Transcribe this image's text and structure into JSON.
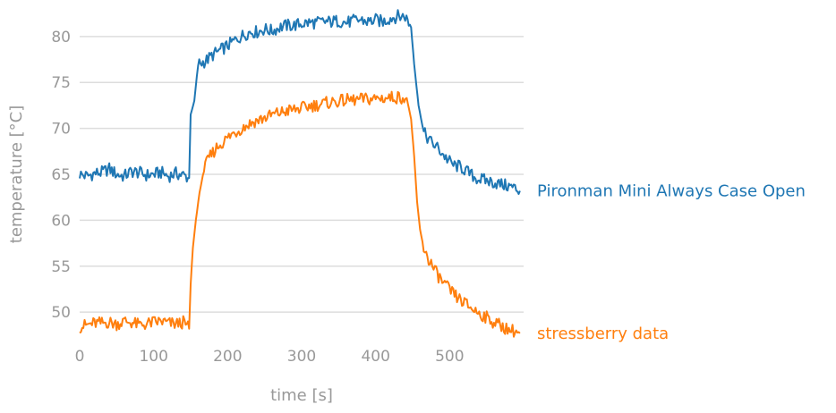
{
  "chart_data": {
    "type": "line",
    "title": "",
    "xlabel": "time [s]",
    "ylabel": "temperature [°C]",
    "xlim": [
      0,
      600
    ],
    "ylim": [
      47,
      83
    ],
    "xticks": [
      0,
      100,
      200,
      300,
      400,
      500
    ],
    "yticks": [
      50,
      55,
      60,
      65,
      70,
      75,
      80
    ],
    "grid": "horizontal",
    "legend": "direct labels at right end of each line",
    "series": [
      {
        "name": "Pironman Mini Always Case Open",
        "color": "#1f77b4",
        "points": [
          [
            0,
            65.0
          ],
          [
            10,
            64.8
          ],
          [
            20,
            65.1
          ],
          [
            30,
            65.2
          ],
          [
            40,
            65.6
          ],
          [
            50,
            65.0
          ],
          [
            60,
            64.8
          ],
          [
            70,
            65.3
          ],
          [
            80,
            65.2
          ],
          [
            90,
            64.9
          ],
          [
            100,
            65.0
          ],
          [
            110,
            65.2
          ],
          [
            120,
            64.8
          ],
          [
            130,
            65.1
          ],
          [
            140,
            64.9
          ],
          [
            148,
            64.6
          ],
          [
            150,
            71.5
          ],
          [
            155,
            73.0
          ],
          [
            160,
            77.0
          ],
          [
            170,
            77.3
          ],
          [
            180,
            78.0
          ],
          [
            190,
            78.5
          ],
          [
            200,
            79.0
          ],
          [
            210,
            79.6
          ],
          [
            220,
            80.1
          ],
          [
            230,
            80.5
          ],
          [
            240,
            80.5
          ],
          [
            250,
            80.8
          ],
          [
            260,
            80.6
          ],
          [
            270,
            81.0
          ],
          [
            280,
            81.2
          ],
          [
            290,
            81.2
          ],
          [
            300,
            81.4
          ],
          [
            310,
            81.5
          ],
          [
            320,
            81.5
          ],
          [
            330,
            81.6
          ],
          [
            340,
            81.6
          ],
          [
            350,
            81.7
          ],
          [
            360,
            81.5
          ],
          [
            370,
            81.7
          ],
          [
            380,
            81.8
          ],
          [
            390,
            81.6
          ],
          [
            400,
            81.8
          ],
          [
            410,
            81.6
          ],
          [
            420,
            82.0
          ],
          [
            430,
            82.2
          ],
          [
            440,
            82.2
          ],
          [
            448,
            81.0
          ],
          [
            452,
            77.0
          ],
          [
            458,
            72.5
          ],
          [
            465,
            69.5
          ],
          [
            475,
            68.5
          ],
          [
            485,
            67.8
          ],
          [
            495,
            66.8
          ],
          [
            505,
            66.0
          ],
          [
            515,
            65.8
          ],
          [
            525,
            65.2
          ],
          [
            535,
            64.6
          ],
          [
            545,
            64.4
          ],
          [
            555,
            64.2
          ],
          [
            565,
            64.0
          ],
          [
            575,
            63.8
          ],
          [
            585,
            63.6
          ],
          [
            595,
            63.2
          ]
        ]
      },
      {
        "name": "stressberry data",
        "color": "#ff7f0e",
        "points": [
          [
            0,
            48.4
          ],
          [
            10,
            48.6
          ],
          [
            20,
            48.8
          ],
          [
            30,
            48.8
          ],
          [
            40,
            48.9
          ],
          [
            50,
            48.7
          ],
          [
            60,
            49.0
          ],
          [
            70,
            48.9
          ],
          [
            80,
            48.6
          ],
          [
            90,
            48.7
          ],
          [
            100,
            48.9
          ],
          [
            110,
            49.0
          ],
          [
            120,
            48.8
          ],
          [
            130,
            48.7
          ],
          [
            140,
            48.9
          ],
          [
            148,
            48.2
          ],
          [
            150,
            53.0
          ],
          [
            153,
            57.0
          ],
          [
            157,
            60.0
          ],
          [
            162,
            63.0
          ],
          [
            168,
            65.5
          ],
          [
            175,
            66.8
          ],
          [
            185,
            67.9
          ],
          [
            195,
            68.6
          ],
          [
            205,
            69.3
          ],
          [
            215,
            69.8
          ],
          [
            225,
            70.3
          ],
          [
            235,
            70.7
          ],
          [
            245,
            71.0
          ],
          [
            255,
            71.3
          ],
          [
            265,
            71.6
          ],
          [
            275,
            71.8
          ],
          [
            285,
            72.0
          ],
          [
            295,
            72.1
          ],
          [
            305,
            72.3
          ],
          [
            315,
            72.5
          ],
          [
            325,
            72.6
          ],
          [
            335,
            72.8
          ],
          [
            345,
            72.9
          ],
          [
            355,
            73.0
          ],
          [
            365,
            73.1
          ],
          [
            375,
            73.1
          ],
          [
            385,
            73.2
          ],
          [
            395,
            73.2
          ],
          [
            405,
            73.3
          ],
          [
            415,
            73.3
          ],
          [
            425,
            73.4
          ],
          [
            435,
            73.4
          ],
          [
            442,
            73.3
          ],
          [
            448,
            71.0
          ],
          [
            452,
            67.0
          ],
          [
            456,
            62.0
          ],
          [
            460,
            59.0
          ],
          [
            465,
            57.0
          ],
          [
            470,
            56.0
          ],
          [
            480,
            54.5
          ],
          [
            490,
            53.3
          ],
          [
            500,
            52.4
          ],
          [
            510,
            51.6
          ],
          [
            520,
            51.0
          ],
          [
            530,
            50.4
          ],
          [
            540,
            49.9
          ],
          [
            550,
            49.4
          ],
          [
            560,
            48.9
          ],
          [
            570,
            48.5
          ],
          [
            580,
            48.1
          ],
          [
            590,
            47.9
          ],
          [
            595,
            47.7
          ]
        ]
      }
    ]
  }
}
